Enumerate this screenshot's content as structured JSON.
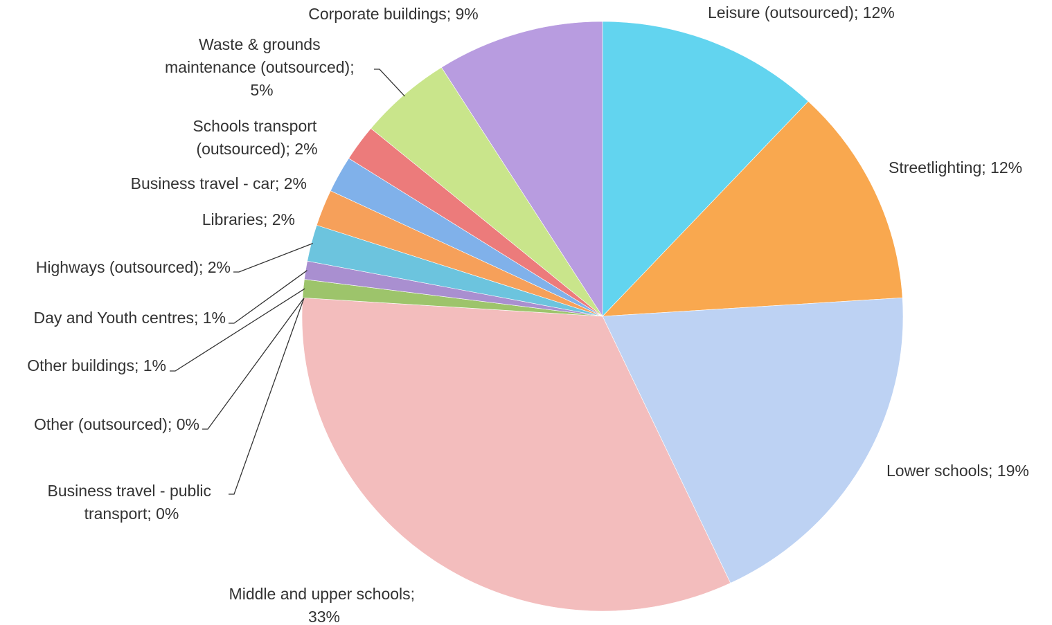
{
  "chart_data": {
    "type": "pie",
    "categories": [
      "Leisure (outsourced)",
      "Streetlighting",
      "Lower schools",
      "Middle and upper schools",
      "Business travel - public transport",
      "Other (outsourced)",
      "Other buildings",
      "Day and Youth centres",
      "Highways (outsourced)",
      "Libraries",
      "Business travel - car",
      "Schools transport (outsourced)",
      "Waste & grounds maintenance (outsourced)",
      "Corporate buildings"
    ],
    "values": [
      12,
      12,
      19,
      33,
      0,
      0,
      1,
      1,
      2,
      2,
      2,
      2,
      5,
      9
    ],
    "value_labels": [
      "Leisure (outsourced); 12%",
      "Streetlighting; 12%",
      "Lower schools; 19%",
      "Middle and upper schools; 33%",
      "Business travel - public transport; 0%",
      "Other (outsourced); 0%",
      "Other buildings; 1%",
      "Day and Youth centres; 1%",
      "Highways (outsourced); 2%",
      "Libraries; 2%",
      "Business travel - car; 2%",
      "Schools transport (outsourced); 2%",
      "Waste & grounds maintenance (outsourced); 5%",
      "Corporate buildings; 9%"
    ],
    "colors": [
      "#62d4ef",
      "#f9a84f",
      "#bdd2f3",
      "#f3bdbd",
      "#a8c8f0",
      "#f0b0b0",
      "#9dc46b",
      "#a98fd0",
      "#6cc4de",
      "#f6a05a",
      "#80b1ea",
      "#ec7b7b",
      "#c9e58b",
      "#b89ce0"
    ]
  }
}
